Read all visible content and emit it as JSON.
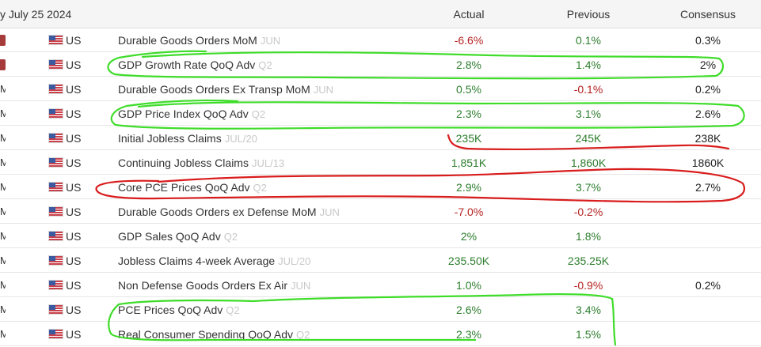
{
  "header": {
    "date": "y July 25 2024",
    "col_actual": "Actual",
    "col_previous": "Previous",
    "col_consensus": "Consensus"
  },
  "rows": [
    {
      "time": "",
      "badge": true,
      "country": "US",
      "event": "Durable Goods Orders MoM",
      "ref": "JUN",
      "actual": "-6.6%",
      "actual_color": "red",
      "previous": "0.1%",
      "previous_color": "green",
      "consensus": "0.3%"
    },
    {
      "time": "",
      "badge": true,
      "country": "US",
      "event": "GDP Growth Rate QoQ Adv",
      "ref": "Q2",
      "actual": "2.8%",
      "actual_color": "green",
      "previous": "1.4%",
      "previous_color": "green",
      "consensus": "2%"
    },
    {
      "time": "M",
      "badge": false,
      "country": "US",
      "event": "Durable Goods Orders Ex Transp MoM",
      "ref": "JUN",
      "actual": "0.5%",
      "actual_color": "green",
      "previous": "-0.1%",
      "previous_color": "red",
      "consensus": "0.2%"
    },
    {
      "time": "M",
      "badge": false,
      "country": "US",
      "event": "GDP Price Index QoQ Adv",
      "ref": "Q2",
      "actual": "2.3%",
      "actual_color": "green",
      "previous": "3.1%",
      "previous_color": "green",
      "consensus": "2.6%"
    },
    {
      "time": "M",
      "badge": false,
      "country": "US",
      "event": "Initial Jobless Claims",
      "ref": "JUL/20",
      "actual": "235K",
      "actual_color": "green",
      "previous": "245K",
      "previous_color": "green",
      "consensus": "238K"
    },
    {
      "time": "M",
      "badge": false,
      "country": "US",
      "event": "Continuing Jobless Claims",
      "ref": "JUL/13",
      "actual": "1,851K",
      "actual_color": "green",
      "previous": "1,860K",
      "previous_color": "green",
      "consensus": "1860K"
    },
    {
      "time": "M",
      "badge": false,
      "country": "US",
      "event": "Core PCE Prices QoQ Adv",
      "ref": "Q2",
      "actual": "2.9%",
      "actual_color": "green",
      "previous": "3.7%",
      "previous_color": "green",
      "consensus": "2.7%"
    },
    {
      "time": "M",
      "badge": false,
      "country": "US",
      "event": "Durable Goods Orders ex Defense MoM",
      "ref": "JUN",
      "actual": "-7.0%",
      "actual_color": "red",
      "previous": "-0.2%",
      "previous_color": "red",
      "consensus": ""
    },
    {
      "time": "M",
      "badge": false,
      "country": "US",
      "event": "GDP Sales QoQ Adv",
      "ref": "Q2",
      "actual": "2%",
      "actual_color": "green",
      "previous": "1.8%",
      "previous_color": "green",
      "consensus": ""
    },
    {
      "time": "M",
      "badge": false,
      "country": "US",
      "event": "Jobless Claims 4-week Average",
      "ref": "JUL/20",
      "actual": "235.50K",
      "actual_color": "green",
      "previous": "235.25K",
      "previous_color": "green",
      "consensus": ""
    },
    {
      "time": "M",
      "badge": false,
      "country": "US",
      "event": "Non Defense Goods Orders Ex Air",
      "ref": "JUN",
      "actual": "1.0%",
      "actual_color": "green",
      "previous": "-0.9%",
      "previous_color": "red",
      "consensus": "0.2%"
    },
    {
      "time": "M",
      "badge": false,
      "country": "US",
      "event": "PCE Prices QoQ Adv",
      "ref": "Q2",
      "actual": "2.6%",
      "actual_color": "green",
      "previous": "3.4%",
      "previous_color": "green",
      "consensus": ""
    },
    {
      "time": "M",
      "badge": false,
      "country": "US",
      "event": "Real Consumer Spending QoQ Adv",
      "ref": "Q2",
      "actual": "2.3%",
      "actual_color": "green",
      "previous": "1.5%",
      "previous_color": "green",
      "consensus": ""
    }
  ],
  "colors": {
    "green_value": "#2d7d2d",
    "red_value": "#b52121",
    "badge": "#a63b3b",
    "marker_green": "#3fdc2a",
    "marker_red": "#d91c1c"
  }
}
